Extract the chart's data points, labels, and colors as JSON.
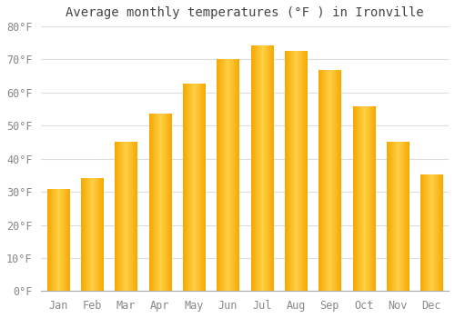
{
  "title": "Average monthly temperatures (°F ) in Ironville",
  "months": [
    "Jan",
    "Feb",
    "Mar",
    "Apr",
    "May",
    "Jun",
    "Jul",
    "Aug",
    "Sep",
    "Oct",
    "Nov",
    "Dec"
  ],
  "values": [
    30.5,
    34.0,
    45.0,
    53.5,
    62.5,
    70.0,
    74.0,
    72.5,
    66.5,
    55.5,
    45.0,
    35.0
  ],
  "bar_color_center": "#FFD045",
  "bar_color_edge": "#F5A800",
  "background_color": "#FFFFFF",
  "grid_color": "#DDDDDD",
  "ylim": [
    0,
    80
  ],
  "yticks": [
    0,
    10,
    20,
    30,
    40,
    50,
    60,
    70,
    80
  ],
  "ytick_labels": [
    "0°F",
    "10°F",
    "20°F",
    "30°F",
    "40°F",
    "50°F",
    "60°F",
    "70°F",
    "80°F"
  ],
  "title_fontsize": 10,
  "tick_fontsize": 8.5,
  "font_family": "monospace"
}
